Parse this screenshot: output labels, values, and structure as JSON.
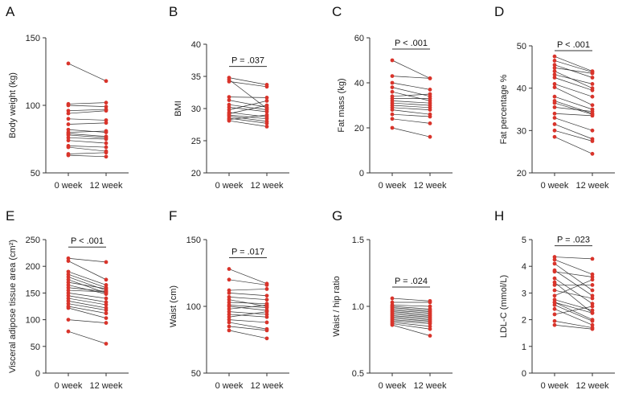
{
  "colors": {
    "point": "#d9342b",
    "line": "#333333",
    "axis": "#333333"
  },
  "chart_data": [
    {
      "type": "line",
      "letter": "A",
      "ylabel": "Body weight (kg)",
      "ylim": [
        50,
        150
      ],
      "yticks": [
        "50",
        "100",
        "150"
      ],
      "categories": [
        "0 week",
        "12 week"
      ],
      "pvalue": "",
      "series": [
        {
          "values": [
            131,
            118
          ]
        },
        {
          "values": [
            101,
            102
          ]
        },
        {
          "values": [
            100,
            99
          ]
        },
        {
          "values": [
            96,
            97
          ]
        },
        {
          "values": [
            94,
            96
          ]
        },
        {
          "values": [
            90,
            89
          ]
        },
        {
          "values": [
            86,
            87
          ]
        },
        {
          "values": [
            82,
            80
          ]
        },
        {
          "values": [
            80,
            81
          ]
        },
        {
          "values": [
            79,
            77
          ]
        },
        {
          "values": [
            78,
            76
          ]
        },
        {
          "values": [
            76,
            75
          ]
        },
        {
          "values": [
            74,
            72
          ]
        },
        {
          "values": [
            70,
            69
          ]
        },
        {
          "values": [
            69,
            66
          ]
        },
        {
          "values": [
            64,
            65
          ]
        },
        {
          "values": [
            63,
            62
          ]
        }
      ]
    },
    {
      "type": "line",
      "letter": "B",
      "ylabel": "BMI",
      "ylim": [
        20,
        40
      ],
      "yticks": [
        "20",
        "25",
        "30",
        "35",
        "40"
      ],
      "categories": [
        "0 week",
        "12 week"
      ],
      "pvalue": "P = .037",
      "series": [
        {
          "values": [
            34.8,
            33.7
          ]
        },
        {
          "values": [
            34.5,
            30.0
          ]
        },
        {
          "values": [
            34.2,
            33.4
          ]
        },
        {
          "values": [
            31.8,
            31.7
          ]
        },
        {
          "values": [
            31.3,
            30.2
          ]
        },
        {
          "values": [
            30.6,
            29.8
          ]
        },
        {
          "values": [
            30.2,
            29.5
          ]
        },
        {
          "values": [
            29.8,
            31.2
          ]
        },
        {
          "values": [
            29.4,
            28.7
          ]
        },
        {
          "values": [
            29.0,
            28.4
          ]
        },
        {
          "values": [
            28.8,
            28.0
          ]
        },
        {
          "values": [
            28.5,
            27.7
          ]
        },
        {
          "values": [
            28.3,
            29.0
          ]
        },
        {
          "values": [
            28.1,
            27.2
          ]
        },
        {
          "values": [
            29.2,
            30.5
          ]
        }
      ]
    },
    {
      "type": "line",
      "letter": "C",
      "ylabel": "Fat mass (kg)",
      "ylim": [
        0,
        60
      ],
      "yticks": [
        "0",
        "20",
        "40",
        "60"
      ],
      "categories": [
        "0 week",
        "12 week"
      ],
      "pvalue": "P < .001",
      "series": [
        {
          "values": [
            50,
            42
          ]
        },
        {
          "values": [
            43,
            42
          ]
        },
        {
          "values": [
            40,
            37
          ]
        },
        {
          "values": [
            38,
            34
          ]
        },
        {
          "values": [
            34,
            35
          ]
        },
        {
          "values": [
            33,
            33
          ]
        },
        {
          "values": [
            32,
            31
          ]
        },
        {
          "values": [
            31,
            30
          ]
        },
        {
          "values": [
            30,
            29
          ]
        },
        {
          "values": [
            29,
            28
          ]
        },
        {
          "values": [
            28,
            26
          ]
        },
        {
          "values": [
            26,
            25
          ]
        },
        {
          "values": [
            24,
            22
          ]
        },
        {
          "values": [
            20,
            16
          ]
        },
        {
          "values": [
            36,
            32
          ]
        }
      ]
    },
    {
      "type": "line",
      "letter": "D",
      "ylabel": "Fat percentage %",
      "ylim": [
        20,
        50
      ],
      "yticks": [
        "20",
        "30",
        "40",
        "50"
      ],
      "categories": [
        "0 week",
        "12 week"
      ],
      "pvalue": "P < .001",
      "series": [
        {
          "values": [
            47.5,
            44.0
          ]
        },
        {
          "values": [
            46.5,
            43.8
          ]
        },
        {
          "values": [
            45.5,
            42.5
          ]
        },
        {
          "values": [
            44.8,
            43.5
          ]
        },
        {
          "values": [
            44.0,
            40.0
          ]
        },
        {
          "values": [
            43.2,
            41.0
          ]
        },
        {
          "values": [
            42.5,
            39.5
          ]
        },
        {
          "values": [
            41.0,
            38.0
          ]
        },
        {
          "values": [
            40.2,
            36.0
          ]
        },
        {
          "values": [
            38.0,
            35.0
          ]
        },
        {
          "values": [
            37.0,
            34.0
          ]
        },
        {
          "values": [
            35.5,
            34.5
          ]
        },
        {
          "values": [
            34.0,
            33.5
          ]
        },
        {
          "values": [
            33.0,
            30.0
          ]
        },
        {
          "values": [
            31.5,
            28.0
          ]
        },
        {
          "values": [
            30.0,
            27.5
          ]
        },
        {
          "values": [
            28.5,
            24.5
          ]
        },
        {
          "values": [
            36.5,
            33.8
          ]
        }
      ]
    },
    {
      "type": "line",
      "letter": "E",
      "ylabel": "Visceral adipose tissue area (cm²)",
      "ylim": [
        0,
        250
      ],
      "yticks": [
        "0",
        "50",
        "100",
        "150",
        "200",
        "250"
      ],
      "categories": [
        "0 week",
        "12 week"
      ],
      "pvalue": "P < .001",
      "series": [
        {
          "values": [
            215,
            208
          ]
        },
        {
          "values": [
            210,
            175
          ]
        },
        {
          "values": [
            190,
            165
          ]
        },
        {
          "values": [
            185,
            160
          ]
        },
        {
          "values": [
            180,
            155
          ]
        },
        {
          "values": [
            175,
            150
          ]
        },
        {
          "values": [
            170,
            158
          ]
        },
        {
          "values": [
            165,
            148
          ]
        },
        {
          "values": [
            160,
            153
          ]
        },
        {
          "values": [
            155,
            152
          ]
        },
        {
          "values": [
            150,
            140
          ]
        },
        {
          "values": [
            145,
            133
          ]
        },
        {
          "values": [
            140,
            128
          ]
        },
        {
          "values": [
            135,
            122
          ]
        },
        {
          "values": [
            130,
            118
          ]
        },
        {
          "values": [
            125,
            112
          ]
        },
        {
          "values": [
            122,
            103
          ]
        },
        {
          "values": [
            100,
            94
          ]
        },
        {
          "values": [
            78,
            55
          ]
        }
      ]
    },
    {
      "type": "line",
      "letter": "F",
      "ylabel": "Waist (cm)",
      "ylim": [
        50,
        150
      ],
      "yticks": [
        "50",
        "100",
        "150"
      ],
      "categories": [
        "0 week",
        "12 week"
      ],
      "pvalue": "P = .017",
      "series": [
        {
          "values": [
            128,
            117
          ]
        },
        {
          "values": [
            120,
            116
          ]
        },
        {
          "values": [
            112,
            113
          ]
        },
        {
          "values": [
            110,
            108
          ]
        },
        {
          "values": [
            107,
            105
          ]
        },
        {
          "values": [
            105,
            100
          ]
        },
        {
          "values": [
            103,
            102
          ]
        },
        {
          "values": [
            101,
            99
          ]
        },
        {
          "values": [
            100,
            97
          ]
        },
        {
          "values": [
            98,
            101
          ]
        },
        {
          "values": [
            96,
            94
          ]
        },
        {
          "values": [
            94,
            92
          ]
        },
        {
          "values": [
            92,
            96
          ]
        },
        {
          "values": [
            90,
            88
          ]
        },
        {
          "values": [
            88,
            83
          ]
        },
        {
          "values": [
            85,
            82
          ]
        },
        {
          "values": [
            82,
            76
          ]
        }
      ]
    },
    {
      "type": "line",
      "letter": "G",
      "ylabel": "Waist / hip ratio",
      "ylim": [
        0.5,
        1.5
      ],
      "yticks": [
        "0.5",
        "1.0",
        "1.5"
      ],
      "categories": [
        "0 week",
        "12 week"
      ],
      "pvalue": "P = .024",
      "series": [
        {
          "values": [
            1.06,
            1.04
          ]
        },
        {
          "values": [
            1.03,
            1.03
          ]
        },
        {
          "values": [
            1.01,
            1.0
          ]
        },
        {
          "values": [
            1.0,
            0.98
          ]
        },
        {
          "values": [
            0.99,
            0.97
          ]
        },
        {
          "values": [
            0.98,
            0.96
          ]
        },
        {
          "values": [
            0.97,
            0.95
          ]
        },
        {
          "values": [
            0.96,
            0.94
          ]
        },
        {
          "values": [
            0.95,
            0.93
          ]
        },
        {
          "values": [
            0.94,
            0.92
          ]
        },
        {
          "values": [
            0.93,
            0.91
          ]
        },
        {
          "values": [
            0.92,
            0.9
          ]
        },
        {
          "values": [
            0.91,
            0.89
          ]
        },
        {
          "values": [
            0.9,
            0.88
          ]
        },
        {
          "values": [
            0.89,
            0.87
          ]
        },
        {
          "values": [
            0.88,
            0.85
          ]
        },
        {
          "values": [
            0.87,
            0.83
          ]
        },
        {
          "values": [
            0.86,
            0.78
          ]
        }
      ]
    },
    {
      "type": "line",
      "letter": "H",
      "ylabel": "LDL-C (mmol/L)",
      "ylim": [
        0,
        5
      ],
      "yticks": [
        "0",
        "1",
        "2",
        "3",
        "4",
        "5"
      ],
      "categories": [
        "0 week",
        "12 week"
      ],
      "pvalue": "P = .023",
      "series": [
        {
          "values": [
            4.35,
            4.28
          ]
        },
        {
          "values": [
            4.25,
            3.7
          ]
        },
        {
          "values": [
            4.1,
            3.1
          ]
        },
        {
          "values": [
            3.85,
            2.9
          ]
        },
        {
          "values": [
            3.8,
            3.6
          ]
        },
        {
          "values": [
            3.55,
            2.6
          ]
        },
        {
          "values": [
            3.3,
            3.3
          ]
        },
        {
          "values": [
            3.1,
            2.8
          ]
        },
        {
          "values": [
            2.9,
            3.5
          ]
        },
        {
          "values": [
            2.75,
            2.35
          ]
        },
        {
          "values": [
            2.65,
            2.0
          ]
        },
        {
          "values": [
            2.55,
            1.95
          ]
        },
        {
          "values": [
            2.4,
            1.8
          ]
        },
        {
          "values": [
            2.2,
            2.5
          ]
        },
        {
          "values": [
            1.95,
            1.7
          ]
        },
        {
          "values": [
            1.8,
            1.65
          ]
        },
        {
          "values": [
            2.65,
            2.25
          ]
        },
        {
          "values": [
            3.4,
            2.25
          ]
        }
      ]
    }
  ]
}
